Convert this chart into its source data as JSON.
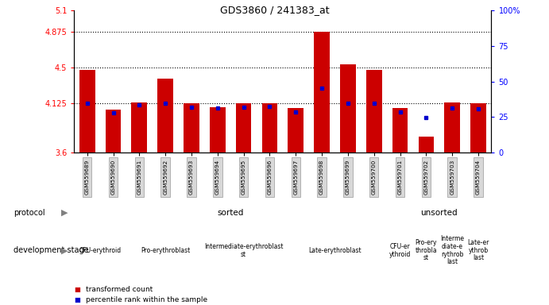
{
  "title": "GDS3860 / 241383_at",
  "samples": [
    "GSM559689",
    "GSM559690",
    "GSM559691",
    "GSM559692",
    "GSM559693",
    "GSM559694",
    "GSM559695",
    "GSM559696",
    "GSM559697",
    "GSM559698",
    "GSM559699",
    "GSM559700",
    "GSM559701",
    "GSM559702",
    "GSM559703",
    "GSM559704"
  ],
  "red_values": [
    4.47,
    4.05,
    4.13,
    4.38,
    4.12,
    4.08,
    4.12,
    4.12,
    4.07,
    4.88,
    4.53,
    4.47,
    4.07,
    3.77,
    4.13,
    4.12
  ],
  "blue_values": [
    4.12,
    4.02,
    4.1,
    4.12,
    4.08,
    4.07,
    4.08,
    4.09,
    4.03,
    4.28,
    4.12,
    4.12,
    4.03,
    3.97,
    4.07,
    4.06
  ],
  "ymin": 3.6,
  "ymax": 5.1,
  "yticks_left": [
    3.6,
    4.125,
    4.5,
    4.875,
    5.1
  ],
  "ytick_labels_left": [
    "3.6",
    "4.125",
    "4.5",
    "4.875",
    "5.1"
  ],
  "yticks_right_pct": [
    0,
    25,
    50,
    75,
    100
  ],
  "ytick_labels_right": [
    "0",
    "25",
    "50",
    "75",
    "100%"
  ],
  "bar_color": "#cc0000",
  "blue_color": "#0000cc",
  "protocol_sorted_color": "#90ee90",
  "protocol_unsorted_color": "#44cc44",
  "dev_stages": [
    {
      "label": "CFU-erythroid",
      "start": 0,
      "end": 2,
      "color": "#ee82ee"
    },
    {
      "label": "Pro-erythroblast",
      "start": 2,
      "end": 5,
      "color": "#ee82ee"
    },
    {
      "label": "Intermediate-erythroblast\nst",
      "start": 5,
      "end": 8,
      "color": "#dd44bb"
    },
    {
      "label": "Late-erythroblast",
      "start": 8,
      "end": 12,
      "color": "#ee82ee"
    },
    {
      "label": "CFU-er\nythroid",
      "start": 12,
      "end": 13,
      "color": "#ee82ee"
    },
    {
      "label": "Pro-ery\nthrobla\nst",
      "start": 13,
      "end": 14,
      "color": "#ee82ee"
    },
    {
      "label": "Interme\ndiate-e\nrythrob\nlast",
      "start": 14,
      "end": 15,
      "color": "#dd44bb"
    },
    {
      "label": "Late-er\nythrob\nlast",
      "start": 15,
      "end": 16,
      "color": "#ee82ee"
    }
  ],
  "sorted_count": 12,
  "total_count": 16,
  "legend_red": "transformed count",
  "legend_blue": "percentile rank within the sample"
}
